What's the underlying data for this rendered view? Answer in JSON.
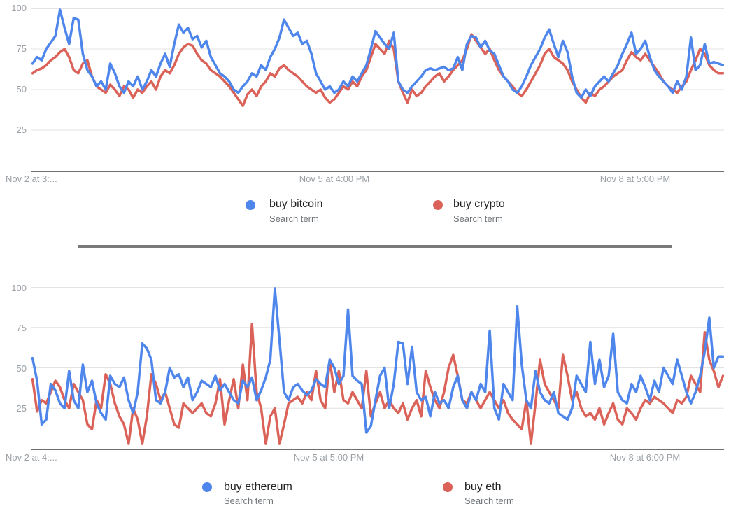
{
  "colors": {
    "blue": "#4e86ec",
    "red": "#db6258",
    "grid": "#e3e3e3",
    "axis_line": "#6f6f6f",
    "tick_text": "#9aa0a6",
    "legend_text": "#212121",
    "legend_sub_text": "#70757a",
    "divider": "#7a7a7a"
  },
  "chart_data": [
    {
      "type": "line",
      "grid": true,
      "legend_position": "bottom",
      "ylim": [
        0,
        100
      ],
      "y_tick_labels": [
        "100",
        "75",
        "50",
        "25"
      ],
      "x_tick_labels": [
        "Nov 2 at 3:...",
        "Nov 5 at 4:00 PM",
        "Nov 8 at 5:00 PM"
      ],
      "series": [
        {
          "name": "buy bitcoin",
          "subtitle": "Search term",
          "color": "#4e86ec",
          "values": [
            66,
            70,
            68,
            75,
            79,
            83,
            100,
            88,
            78,
            94,
            93,
            72,
            62,
            58,
            52,
            55,
            50,
            66,
            60,
            52,
            48,
            55,
            52,
            58,
            50,
            55,
            62,
            58,
            66,
            72,
            64,
            78,
            90,
            85,
            88,
            81,
            83,
            76,
            80,
            70,
            65,
            60,
            58,
            55,
            50,
            48,
            52,
            55,
            60,
            58,
            65,
            62,
            70,
            75,
            82,
            93,
            88,
            83,
            85,
            78,
            80,
            72,
            60,
            55,
            50,
            52,
            48,
            50,
            55,
            52,
            58,
            55,
            60,
            65,
            75,
            86,
            82,
            78,
            75,
            85,
            55,
            50,
            48,
            52,
            55,
            58,
            62,
            63,
            62,
            63,
            64,
            62,
            63,
            70,
            62,
            78,
            83,
            82,
            76,
            80,
            74,
            72,
            65,
            58,
            55,
            50,
            48,
            52,
            58,
            65,
            70,
            75,
            82,
            87,
            78,
            70,
            80,
            73,
            58,
            48,
            45,
            50,
            46,
            52,
            55,
            58,
            55,
            60,
            65,
            72,
            78,
            85,
            72,
            75,
            80,
            70,
            62,
            58,
            55,
            52,
            48,
            55,
            50,
            58,
            82,
            62,
            65,
            78,
            66,
            67,
            66,
            65
          ]
        },
        {
          "name": "buy crypto",
          "subtitle": "Search term",
          "color": "#db6258",
          "values": [
            60,
            62,
            63,
            65,
            68,
            70,
            73,
            75,
            70,
            62,
            60,
            66,
            68,
            58,
            52,
            50,
            48,
            53,
            50,
            46,
            52,
            50,
            45,
            50,
            48,
            52,
            55,
            50,
            58,
            62,
            60,
            65,
            72,
            76,
            78,
            77,
            72,
            68,
            66,
            62,
            60,
            58,
            55,
            52,
            48,
            44,
            40,
            47,
            50,
            46,
            52,
            55,
            60,
            58,
            63,
            65,
            62,
            60,
            58,
            55,
            52,
            50,
            48,
            50,
            45,
            42,
            44,
            48,
            52,
            50,
            55,
            52,
            58,
            62,
            70,
            78,
            75,
            72,
            80,
            75,
            55,
            48,
            42,
            50,
            46,
            48,
            52,
            55,
            58,
            60,
            55,
            58,
            62,
            65,
            68,
            75,
            84,
            80,
            76,
            72,
            75,
            68,
            62,
            58,
            55,
            52,
            48,
            46,
            50,
            55,
            60,
            65,
            72,
            75,
            70,
            68,
            66,
            62,
            55,
            50,
            45,
            42,
            48,
            46,
            50,
            52,
            55,
            58,
            60,
            62,
            68,
            73,
            70,
            68,
            72,
            68,
            64,
            60,
            55,
            52,
            50,
            48,
            52,
            55,
            62,
            68,
            75,
            72,
            65,
            62,
            60,
            60
          ]
        }
      ]
    },
    {
      "type": "line",
      "grid": true,
      "legend_position": "bottom",
      "ylim": [
        0,
        100
      ],
      "y_tick_labels": [
        "100",
        "75",
        "50",
        "25"
      ],
      "x_tick_labels": [
        "Nov 2 at 4:...",
        "Nov 5 at 5:00 PM",
        "Nov 8 at 6:00 PM"
      ],
      "series": [
        {
          "name": "buy ethereum",
          "subtitle": "Search term",
          "color": "#4e86ec",
          "values": [
            56,
            42,
            15,
            18,
            40,
            36,
            28,
            25,
            48,
            30,
            25,
            52,
            35,
            42,
            28,
            22,
            18,
            45,
            40,
            38,
            44,
            30,
            22,
            35,
            65,
            62,
            55,
            30,
            28,
            35,
            50,
            44,
            46,
            38,
            44,
            30,
            35,
            42,
            40,
            38,
            45,
            36,
            40,
            35,
            30,
            28,
            42,
            38,
            44,
            30,
            36,
            44,
            55,
            100,
            67,
            35,
            30,
            38,
            40,
            36,
            33,
            36,
            43,
            40,
            38,
            55,
            50,
            40,
            45,
            86,
            45,
            42,
            40,
            10,
            14,
            30,
            45,
            50,
            25,
            40,
            66,
            65,
            40,
            63,
            35,
            30,
            32,
            20,
            35,
            28,
            30,
            25,
            38,
            45,
            30,
            25,
            35,
            30,
            40,
            35,
            73,
            25,
            18,
            40,
            35,
            30,
            88,
            52,
            30,
            25,
            48,
            35,
            30,
            28,
            35,
            22,
            20,
            18,
            25,
            45,
            40,
            35,
            66,
            40,
            55,
            38,
            45,
            71,
            35,
            30,
            28,
            40,
            35,
            45,
            38,
            30,
            42,
            35,
            50,
            45,
            40,
            55,
            45,
            35,
            28,
            35,
            45,
            60,
            81,
            50,
            57,
            57
          ]
        },
        {
          "name": "buy eth",
          "subtitle": "Search term",
          "color": "#db6258",
          "values": [
            43,
            23,
            30,
            28,
            35,
            42,
            38,
            30,
            25,
            40,
            35,
            30,
            15,
            12,
            30,
            25,
            46,
            40,
            28,
            20,
            15,
            3,
            25,
            18,
            3,
            20,
            46,
            40,
            30,
            35,
            25,
            15,
            13,
            28,
            25,
            22,
            25,
            28,
            22,
            20,
            28,
            43,
            15,
            30,
            43,
            25,
            52,
            30,
            77,
            35,
            25,
            3,
            20,
            25,
            3,
            15,
            28,
            30,
            32,
            28,
            35,
            30,
            48,
            30,
            25,
            55,
            35,
            48,
            30,
            28,
            35,
            30,
            25,
            48,
            20,
            28,
            35,
            25,
            30,
            25,
            22,
            28,
            18,
            25,
            30,
            20,
            48,
            38,
            30,
            25,
            35,
            50,
            58,
            45,
            30,
            28,
            35,
            30,
            25,
            30,
            35,
            30,
            25,
            30,
            22,
            18,
            15,
            12,
            30,
            3,
            28,
            55,
            40,
            35,
            30,
            25,
            58,
            45,
            30,
            35,
            25,
            20,
            22,
            18,
            25,
            15,
            22,
            28,
            18,
            15,
            25,
            22,
            18,
            25,
            30,
            28,
            32,
            30,
            28,
            25,
            22,
            30,
            28,
            32,
            45,
            40,
            35,
            72,
            55,
            48,
            38,
            45
          ]
        }
      ]
    }
  ]
}
